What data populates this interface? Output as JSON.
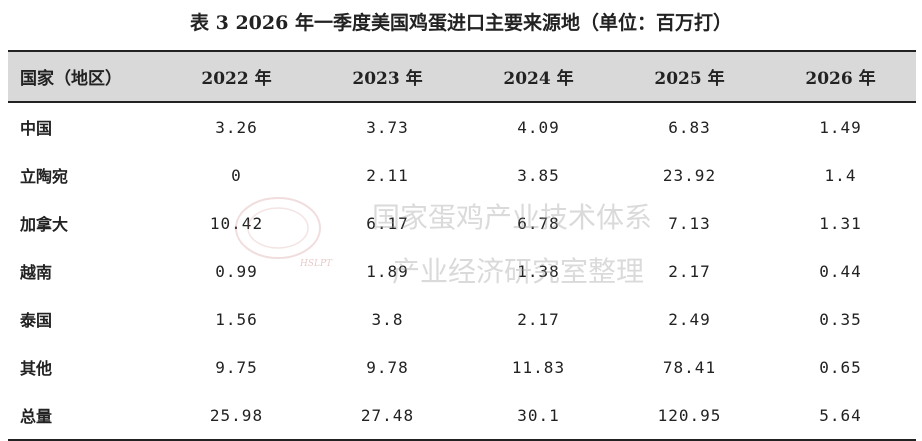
{
  "title": "表 3   2026 年一季度美国鸡蛋进口主要来源地（单位：百万打）",
  "table": {
    "header": [
      "国家（地区）",
      "2022 年",
      "2023 年",
      "2024 年",
      "2025 年",
      "2026 年"
    ],
    "rows": [
      [
        "中国",
        "3.26",
        "3.73",
        "4.09",
        "6.83",
        "1.49"
      ],
      [
        "立陶宛",
        "0",
        "2.11",
        "3.85",
        "23.92",
        "1.4"
      ],
      [
        "加拿大",
        "10.42",
        "6.17",
        "6.78",
        "7.13",
        "1.31"
      ],
      [
        "越南",
        "0.99",
        "1.89",
        "1.38",
        "2.17",
        "0.44"
      ],
      [
        "泰国",
        "1.56",
        "3.8",
        "2.17",
        "2.49",
        "0.35"
      ],
      [
        "其他",
        "9.75",
        "9.78",
        "11.83",
        "78.41",
        "0.65"
      ],
      [
        "总量",
        "25.98",
        "27.48",
        "30.1",
        "120.95",
        "5.64"
      ]
    ]
  },
  "watermark": {
    "line1": "国家蛋鸡产业技术体系",
    "line2": "产业经济研究室整理",
    "logo": "HSLPT"
  }
}
